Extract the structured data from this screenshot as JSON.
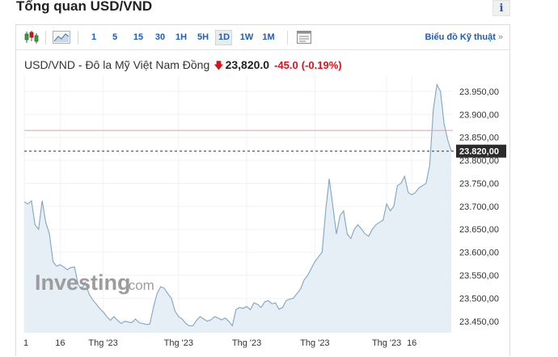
{
  "page": {
    "title": "Tổng quan USD/VND",
    "info_label": "i"
  },
  "toolbar": {
    "candlestick_icon": "candlestick-chart-icon",
    "area_icon": "area-chart-icon",
    "indicator_icon": "indicator-panel-icon",
    "ranges": [
      "1",
      "5",
      "15",
      "30",
      "1H",
      "5H",
      "1D",
      "1W",
      "1M"
    ],
    "active_range": "1D",
    "technical_link": "Biểu đồ Kỹ thuật",
    "technical_chevron": "»"
  },
  "quote": {
    "name": "USD/VND - Đô la Mỹ Việt Nam Đồng",
    "arrow": "🡇",
    "price": "23,820.0",
    "change": "-45.0",
    "change_pct": "(-0.19%)",
    "down_color": "#d9121c"
  },
  "watermark": {
    "brand": "Investing",
    "domain": ".com"
  },
  "chart_data": {
    "type": "area",
    "y_ticks": [
      "23.950,00",
      "23.900,00",
      "23.850,00",
      "23.800,00",
      "23.750,00",
      "23.700,00",
      "23.650,00",
      "23.600,00",
      "23.550,00",
      "23.500,00",
      "23.450,00"
    ],
    "y_tick_values": [
      23950,
      23900,
      23850,
      23800,
      23750,
      23700,
      23650,
      23600,
      23550,
      23500,
      23450
    ],
    "ylim": [
      23425,
      23985
    ],
    "x_ticks": [
      "1",
      "16",
      "Thg '23",
      "Thg '23",
      "Thg '23",
      "Thg '23",
      "Thg '23",
      "16"
    ],
    "x_tick_index": [
      0,
      10,
      22,
      43,
      62,
      81,
      101,
      108
    ],
    "current_price_label": "23.820,00",
    "current_price": 23820,
    "reference_line": 23865,
    "line_color": "#7fa6c4",
    "fill_color": "#e6eef6",
    "grid": true,
    "series": [
      {
        "values": [
          23710,
          23705,
          23712,
          23660,
          23650,
          23712,
          23665,
          23640,
          23580,
          23570,
          23573,
          23568,
          23562,
          23567,
          23568,
          23530,
          23520,
          23535,
          23510,
          23497,
          23488,
          23478,
          23470,
          23460,
          23452,
          23460,
          23452,
          23445,
          23450,
          23448,
          23447,
          23455,
          23447,
          23445,
          23443,
          23444,
          23480,
          23510,
          23525,
          23522,
          23510,
          23500,
          23472,
          23460,
          23455,
          23445,
          23440,
          23440,
          23452,
          23460,
          23455,
          23450,
          23453,
          23460,
          23457,
          23453,
          23457,
          23450,
          23440,
          23475,
          23480,
          23478,
          23482,
          23475,
          23490,
          23487,
          23480,
          23492,
          23495,
          23488,
          23490,
          23476,
          23480,
          23495,
          23498,
          23500,
          23510,
          23520,
          23540,
          23550,
          23565,
          23580,
          23590,
          23600,
          23690,
          23760,
          23700,
          23640,
          23680,
          23690,
          23640,
          23630,
          23650,
          23660,
          23650,
          23640,
          23635,
          23650,
          23660,
          23665,
          23670,
          23705,
          23690,
          23700,
          23745,
          23750,
          23765,
          23730,
          23725,
          23730,
          23740,
          23745,
          23750,
          23790,
          23910,
          23965,
          23950,
          23880,
          23845,
          23820
        ]
      }
    ]
  }
}
